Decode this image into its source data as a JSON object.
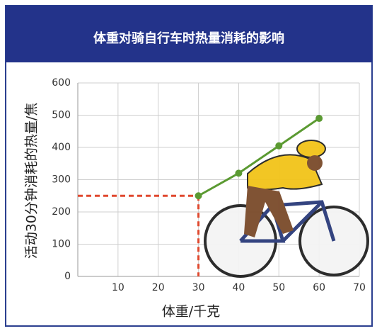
{
  "chart_data": {
    "type": "line",
    "title": "体重对骑自行车时热量消耗的影响",
    "x_label": "体重/千克",
    "y_label": "活动30分钟消耗的热量/焦",
    "x": [
      30,
      40,
      50,
      60
    ],
    "values": [
      250,
      320,
      405,
      490
    ],
    "color": "#5b9a32",
    "xlim": [
      0,
      70
    ],
    "xticks": [
      10,
      20,
      30,
      40,
      50,
      60,
      70
    ],
    "ylim": [
      0,
      600
    ],
    "yticks": [
      0,
      100,
      200,
      300,
      400,
      500,
      600
    ],
    "grid": true,
    "guide_color": "#e0492f"
  }
}
